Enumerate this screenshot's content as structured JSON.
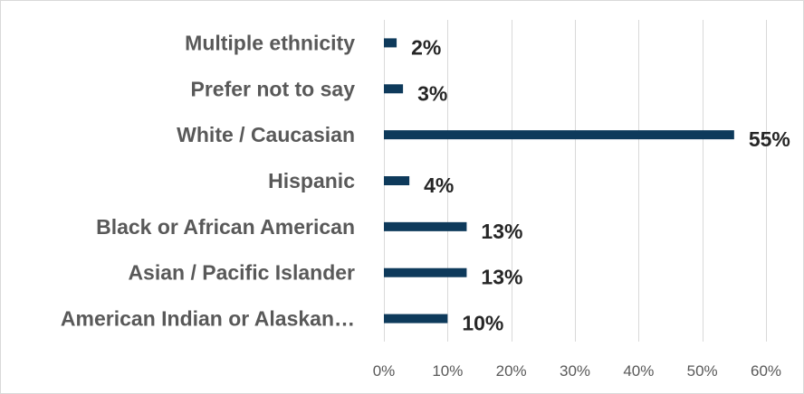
{
  "chart_data": {
    "type": "bar",
    "orientation": "horizontal",
    "categories": [
      "Multiple ethnicity",
      "Prefer not to say",
      "White / Caucasian",
      "Hispanic",
      "Black or African American",
      "Asian / Pacific Islander",
      "American Indian or Alaskan…"
    ],
    "values": [
      2,
      3,
      55,
      4,
      13,
      13,
      10
    ],
    "data_labels": [
      "2%",
      "3%",
      "55%",
      "4%",
      "13%",
      "13%",
      "10%"
    ],
    "xlim": [
      0,
      60
    ],
    "x_ticks": [
      0,
      10,
      20,
      30,
      40,
      50,
      60
    ],
    "x_tick_labels": [
      "0%",
      "10%",
      "20%",
      "30%",
      "40%",
      "50%",
      "60%"
    ],
    "grid": true,
    "bar_color": "#0e3a5b"
  }
}
